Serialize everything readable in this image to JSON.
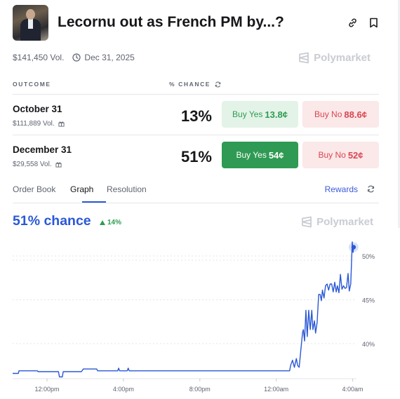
{
  "header": {
    "title": "Lecornu out as French PM by...?",
    "link_icon": "link-icon",
    "bookmark_icon": "bookmark-icon"
  },
  "meta": {
    "volume": "$141,450 Vol.",
    "end_date": "Dec 31, 2025"
  },
  "brand": {
    "name": "Polymarket"
  },
  "columns": {
    "outcome": "OUTCOME",
    "chance": "% CHANCE"
  },
  "outcomes": [
    {
      "name": "October 31",
      "volume": "$111,889 Vol.",
      "chance": "13%",
      "buy_yes_label": "Buy Yes",
      "buy_yes_price": "13.8¢",
      "buy_no_label": "Buy No",
      "buy_no_price": "88.6¢"
    },
    {
      "name": "December 31",
      "volume": "$29,558 Vol.",
      "chance": "51%",
      "buy_yes_label": "Buy Yes",
      "buy_yes_price": "54¢",
      "buy_no_label": "Buy No",
      "buy_no_price": "52¢"
    }
  ],
  "tabs": {
    "items": [
      "Order Book",
      "Graph",
      "Resolution"
    ],
    "active": "Graph",
    "rewards": "Rewards"
  },
  "summary": {
    "chance": "51% chance",
    "delta": "14%"
  },
  "colors": {
    "accent": "#2a58d6",
    "yes": "#2f9a53",
    "no": "#d94650"
  },
  "chart_data": {
    "type": "line",
    "x_ticks": [
      "12:00pm",
      "4:00pm",
      "8:00pm",
      "12:00am",
      "4:00am"
    ],
    "y_ticks": [
      "40%",
      "45%",
      "50%"
    ],
    "ylim": [
      36,
      52
    ],
    "grid": true,
    "series": [
      {
        "values": [
          [
            0,
            36.6
          ],
          [
            0.3,
            36.6
          ],
          [
            0.33,
            36.9
          ],
          [
            1.3,
            36.9
          ],
          [
            1.33,
            36.8
          ],
          [
            2.4,
            36.8
          ],
          [
            2.45,
            36.2
          ],
          [
            2.6,
            36.2
          ],
          [
            2.65,
            36.8
          ],
          [
            3.6,
            36.8
          ],
          [
            3.7,
            37.1
          ],
          [
            4.4,
            37.1
          ],
          [
            4.45,
            36.9
          ],
          [
            5.5,
            36.9
          ],
          [
            5.55,
            37.2
          ],
          [
            5.6,
            36.9
          ],
          [
            6,
            36.9
          ],
          [
            6.05,
            37.2
          ],
          [
            6.1,
            36.9
          ],
          [
            13.5,
            36.9
          ],
          [
            14.5,
            36.9
          ],
          [
            14.55,
            37.5
          ],
          [
            14.65,
            38.1
          ],
          [
            14.75,
            37.3
          ],
          [
            14.85,
            38.3
          ],
          [
            14.92,
            37.5
          ],
          [
            15.0,
            37.3
          ],
          [
            15.1,
            39.6
          ],
          [
            15.18,
            41.3
          ],
          [
            15.22,
            41.6
          ],
          [
            15.28,
            40.3
          ],
          [
            15.35,
            43.8
          ],
          [
            15.42,
            40.8
          ],
          [
            15.5,
            43.8
          ],
          [
            15.58,
            41.6
          ],
          [
            15.66,
            43.8
          ],
          [
            15.72,
            41.6
          ],
          [
            15.8,
            42.6
          ],
          [
            15.86,
            41.2
          ],
          [
            15.94,
            42.4
          ],
          [
            16.02,
            45.6
          ],
          [
            16.1,
            45.6
          ],
          [
            16.16,
            44.9
          ],
          [
            16.22,
            46.1
          ],
          [
            16.3,
            45.2
          ],
          [
            16.38,
            46.6
          ],
          [
            16.46,
            46.8
          ],
          [
            16.54,
            46.1
          ],
          [
            16.62,
            46.8
          ],
          [
            16.7,
            46.8
          ],
          [
            16.78,
            45.9
          ],
          [
            16.86,
            47.0
          ],
          [
            16.94,
            45.9
          ],
          [
            17.0,
            46.6
          ],
          [
            17.08,
            45.8
          ],
          [
            17.16,
            47.9
          ],
          [
            17.24,
            46.2
          ],
          [
            17.32,
            46.6
          ],
          [
            17.4,
            46.3
          ],
          [
            17.48,
            46.4
          ],
          [
            17.56,
            48.0
          ],
          [
            17.62,
            46.0
          ],
          [
            17.7,
            46.8
          ],
          [
            17.78,
            51.6
          ],
          [
            17.82,
            50.4
          ],
          [
            17.85,
            51.0
          ]
        ]
      }
    ]
  }
}
